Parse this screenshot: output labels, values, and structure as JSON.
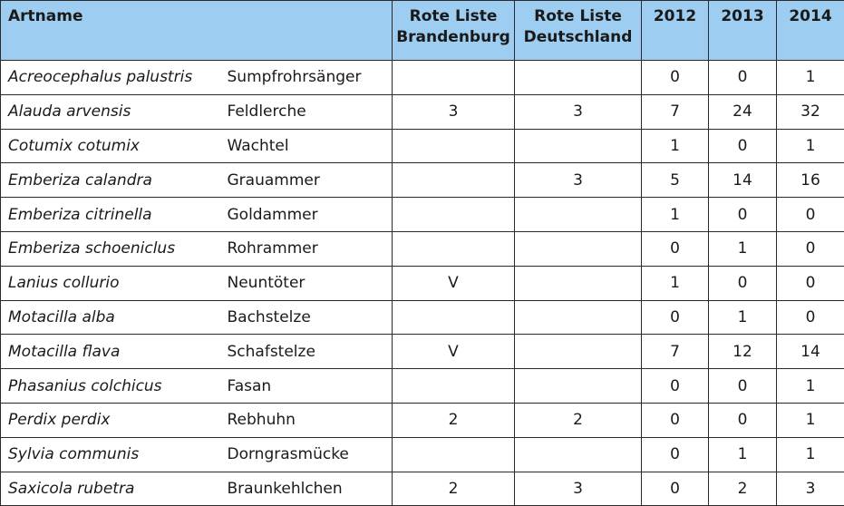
{
  "headers": {
    "artname": "Artname",
    "rl_bb_line1": "Rote Liste",
    "rl_bb_line2": "Brandenburg",
    "rl_de_line1": "Rote Liste",
    "rl_de_line2": "Deutschland",
    "y2012": "2012",
    "y2013": "2013",
    "y2014": "2014"
  },
  "rows": [
    {
      "latin": "Acreocephalus palustris",
      "common": "Sumpfrohrsänger",
      "rl_bb": "",
      "rl_de": "",
      "y2012": "0",
      "y2013": "0",
      "y2014": "1"
    },
    {
      "latin": "Alauda arvensis",
      "common": "Feldlerche",
      "rl_bb": "3",
      "rl_de": "3",
      "y2012": "7",
      "y2013": "24",
      "y2014": "32"
    },
    {
      "latin": "Cotumix cotumix",
      "common": "Wachtel",
      "rl_bb": "",
      "rl_de": "",
      "y2012": "1",
      "y2013": "0",
      "y2014": "1"
    },
    {
      "latin": "Emberiza calandra",
      "common": "Grauammer",
      "rl_bb": "",
      "rl_de": "3",
      "y2012": "5",
      "y2013": "14",
      "y2014": "16"
    },
    {
      "latin": "Emberiza citrinella",
      "common": "Goldammer",
      "rl_bb": "",
      "rl_de": "",
      "y2012": "1",
      "y2013": "0",
      "y2014": "0"
    },
    {
      "latin": "Emberiza schoeniclus",
      "common": "Rohrammer",
      "rl_bb": "",
      "rl_de": "",
      "y2012": "0",
      "y2013": "1",
      "y2014": "0"
    },
    {
      "latin": "Lanius collurio",
      "common": "Neuntöter",
      "rl_bb": "V",
      "rl_de": "",
      "y2012": "1",
      "y2013": "0",
      "y2014": "0"
    },
    {
      "latin": "Motacilla alba",
      "common": "Bachstelze",
      "rl_bb": "",
      "rl_de": "",
      "y2012": "0",
      "y2013": "1",
      "y2014": "0"
    },
    {
      "latin": "Motacilla flava",
      "common": "Schafstelze",
      "rl_bb": "V",
      "rl_de": "",
      "y2012": "7",
      "y2013": "12",
      "y2014": "14"
    },
    {
      "latin": "Phasanius colchicus",
      "common": "Fasan",
      "rl_bb": "",
      "rl_de": "",
      "y2012": "0",
      "y2013": "0",
      "y2014": "1"
    },
    {
      "latin": "Perdix perdix",
      "common": "Rebhuhn",
      "rl_bb": "2",
      "rl_de": "2",
      "y2012": "0",
      "y2013": "0",
      "y2014": "1"
    },
    {
      "latin": "Sylvia communis",
      "common": "Dorngrasmücke",
      "rl_bb": "",
      "rl_de": "",
      "y2012": "0",
      "y2013": "1",
      "y2014": "1"
    },
    {
      "latin": "Saxicola rubetra",
      "common": "Braunkehlchen",
      "rl_bb": "2",
      "rl_de": "3",
      "y2012": "0",
      "y2013": "2",
      "y2014": "3"
    }
  ],
  "colors": {
    "header_bg": "#9dcdf0",
    "border": "#2a2a2a"
  }
}
